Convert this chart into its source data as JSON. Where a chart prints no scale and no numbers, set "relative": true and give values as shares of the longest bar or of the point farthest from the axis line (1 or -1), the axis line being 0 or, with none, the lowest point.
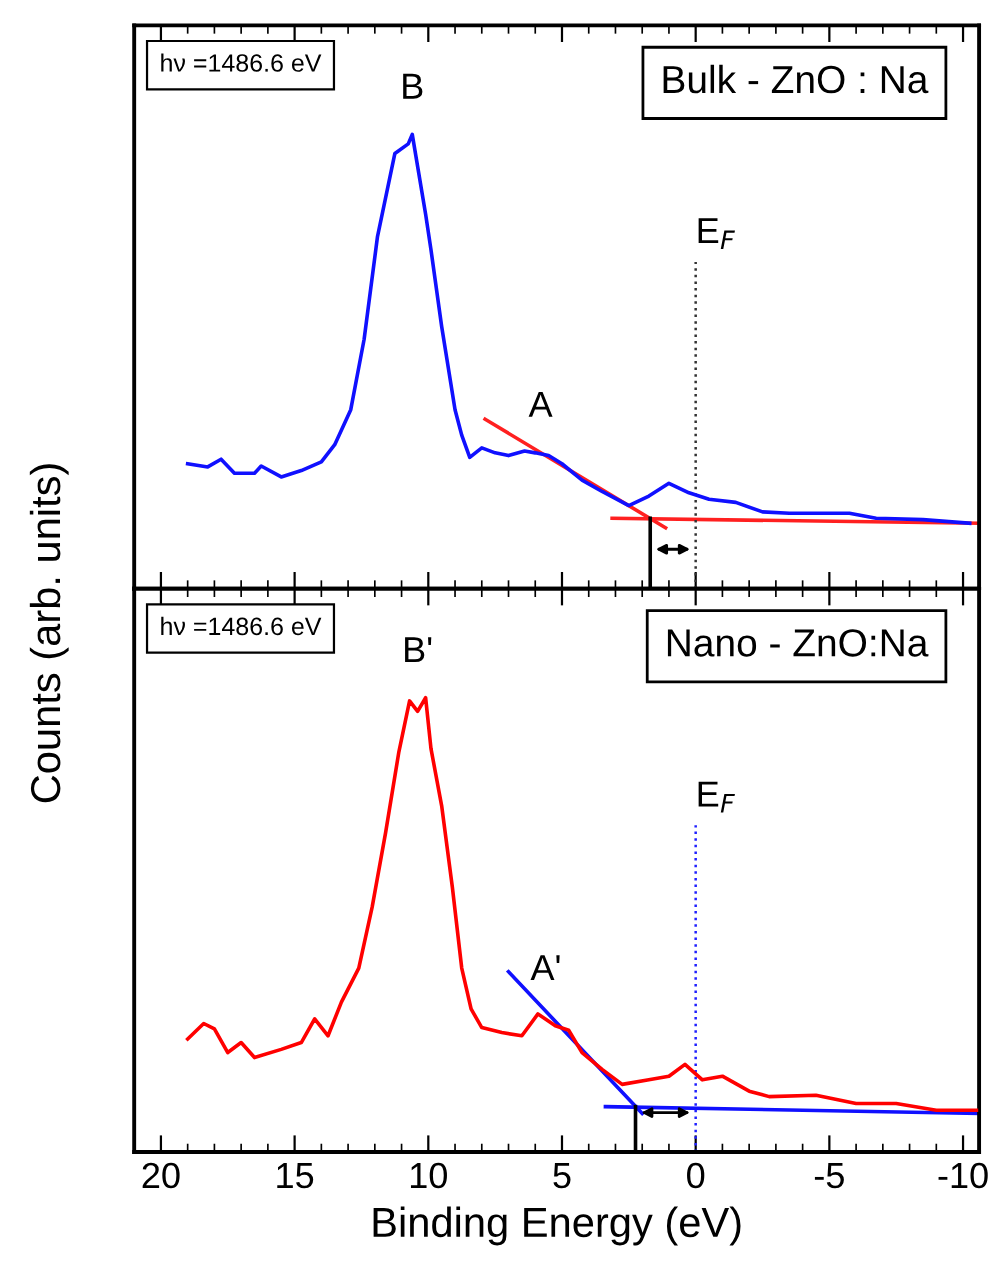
{
  "chart_data": [
    {
      "type": "line",
      "relative": true,
      "ylabel": "Counts (arb. units)",
      "xlim": [
        21,
        -10.6
      ],
      "xticks": [
        20,
        15,
        10,
        5,
        0,
        -5,
        -10
      ],
      "tick_labels": false,
      "legend": false,
      "annotations": [
        "hν =1486.6 eV",
        "Bulk - ZnO : Na",
        {
          "text": "B",
          "x": 10.6,
          "y": 1.0
        },
        {
          "text": "A",
          "x": 5.8,
          "y": 0.3
        }
      ],
      "ref_lines": [
        {
          "axis": "x",
          "value": 0,
          "label": "E$_{F}$",
          "color": "#333333",
          "line_style": "dotted"
        }
      ],
      "series": [
        {
          "color": "#1010ff",
          "x": [
            19,
            18.25,
            17.75,
            17.25,
            16.5,
            16.25,
            15.5,
            14.75,
            14,
            13.5,
            12.9,
            12.4,
            11.9,
            11.25,
            10.75,
            10.6,
            10.1,
            9.9,
            9.5,
            9.0,
            8.75,
            8.45,
            8.0,
            7.5,
            7.0,
            6.4,
            6.0,
            5.5,
            5.0,
            4.25,
            3.5,
            2.5,
            1.75,
            1.0,
            0.25,
            -0.5,
            -1.5,
            -2.5,
            -3.5,
            -5.75,
            -6.75,
            -8.5,
            -10.25
          ],
          "values": [
            0.275,
            0.268,
            0.285,
            0.254,
            0.254,
            0.27,
            0.246,
            0.26,
            0.279,
            0.317,
            0.394,
            0.549,
            0.775,
            0.958,
            0.979,
            1.0,
            0.824,
            0.746,
            0.577,
            0.394,
            0.338,
            0.289,
            0.31,
            0.299,
            0.293,
            0.303,
            0.299,
            0.293,
            0.275,
            0.239,
            0.214,
            0.183,
            0.204,
            0.232,
            0.211,
            0.197,
            0.19,
            0.169,
            0.166,
            0.166,
            0.155,
            0.152,
            0.144
          ]
        },
        {
          "color": "#ff2020",
          "x": [
            7.875,
            1.125
          ],
          "values": [
            0.373,
            0.134
          ]
        },
        {
          "color": "#ff2020",
          "x": [
            3.125,
            -10.6
          ],
          "values": [
            0.155,
            0.144
          ]
        },
        {
          "color": "#000000",
          "x": [
            1.7,
            1.7
          ],
          "values": [
            0,
            0.155
          ]
        }
      ]
    },
    {
      "type": "line",
      "relative": true,
      "xlabel": "Binding Energy (eV)",
      "xlim": [
        21,
        -10.6
      ],
      "xticks": [
        20,
        15,
        10,
        5,
        0,
        -5,
        -10
      ],
      "tick_labels": "x",
      "legend": false,
      "annotations": [
        "hν =1486.6 eV",
        "Nano - ZnO:Na",
        {
          "text": "B'",
          "x": 10.4,
          "y": 1.0
        },
        {
          "text": "A'",
          "x": 5.6,
          "y": 0.3
        }
      ],
      "ref_lines": [
        {
          "axis": "x",
          "value": 0,
          "label": "E$_{F}$",
          "color": "#2020ff",
          "line_style": "dotted"
        }
      ],
      "series": [
        {
          "color": "#ff0000",
          "x": [
            19,
            18.4,
            18,
            17.5,
            17,
            16.5,
            15.5,
            14.75,
            14.25,
            13.75,
            13.25,
            12.6,
            12.1,
            11.6,
            11.1,
            10.7,
            10.4,
            10.1,
            9.9,
            9.5,
            9.1,
            8.75,
            8.4,
            8.0,
            7.25,
            6.5,
            5.9,
            5.25,
            4.75,
            4.25,
            3.5,
            2.75,
            1.75,
            1.0,
            0.4,
            -0.25,
            -1.0,
            -2.0,
            -2.75,
            -4.5,
            -6.0,
            -7.5,
            -9.0,
            -10.5
          ],
          "values": [
            0.249,
            0.283,
            0.271,
            0.219,
            0.241,
            0.208,
            0.226,
            0.241,
            0.293,
            0.256,
            0.33,
            0.405,
            0.539,
            0.702,
            0.881,
            0.993,
            0.97,
            1.0,
            0.888,
            0.762,
            0.583,
            0.405,
            0.315,
            0.274,
            0.263,
            0.256,
            0.304,
            0.278,
            0.268,
            0.219,
            0.182,
            0.149,
            0.159,
            0.167,
            0.193,
            0.159,
            0.167,
            0.134,
            0.122,
            0.125,
            0.107,
            0.107,
            0.092,
            0.092
          ]
        },
        {
          "color": "#1010ff",
          "x": [
            7.0,
            2.0
          ],
          "values": [
            0.397,
            0.085
          ]
        },
        {
          "color": "#1010ff",
          "x": [
            3.375,
            -10.6
          ],
          "values": [
            0.1,
            0.085
          ]
        },
        {
          "color": "#000000",
          "x": [
            2.25,
            2.25
          ],
          "values": [
            0,
            0.1
          ]
        }
      ]
    }
  ]
}
